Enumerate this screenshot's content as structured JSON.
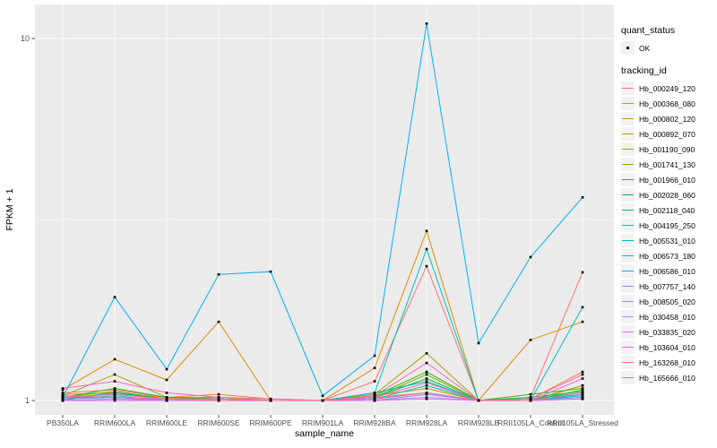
{
  "figure": {
    "panel_background": "#EBEBEB",
    "gridline_color": "#FFFFFF",
    "marker_color": "#000000",
    "axis_text_color": "#4D4D4D"
  },
  "axes": {
    "x_title": "sample_name",
    "y_title": "FPKM + 1",
    "y_tick_labels": [
      "10",
      "1"
    ]
  },
  "legend": {
    "quant_status_title": "quant_status",
    "quant_status_items": [
      {
        "label": "OK",
        "marker": "black-point"
      }
    ],
    "tracking_id_title": "tracking_id"
  },
  "chart_data": {
    "type": "line",
    "title": "",
    "xlabel": "sample_name",
    "ylabel": "FPKM + 1",
    "y_scale": "log10",
    "y_ticks": [
      1,
      10
    ],
    "y_minor_gridline_at": 3.162,
    "ylim_approx": [
      0.93,
      12.5
    ],
    "grid": true,
    "legend_position": "right",
    "point_marker": "small black square (quant_status = OK)",
    "categories": [
      "PB350LA",
      "RRIM600LA",
      "RRIM600LE",
      "RRIM600SE",
      "RRIM600PE",
      "RRIM901LA",
      "RRIM928BA",
      "RRIM928LA",
      "RRIM928LB",
      "RRII105LA_Control",
      "RRII105LA_Stressed"
    ],
    "series": [
      {
        "name": "Hb_000249_120",
        "color": "#F8766D",
        "values": [
          1.05,
          1.07,
          1.02,
          1.02,
          1.0,
          1.0,
          1.13,
          2.35,
          1.0,
          1.02,
          2.26
        ]
      },
      {
        "name": "Hb_000368_080",
        "color": "#EA8331",
        "values": [
          1.04,
          1.05,
          1.02,
          1.04,
          1.01,
          1.0,
          1.02,
          1.05,
          1.0,
          1.01,
          1.2
        ]
      },
      {
        "name": "Hb_000802_120",
        "color": "#D89000",
        "values": [
          1.07,
          1.3,
          1.14,
          1.65,
          1.0,
          1.0,
          1.23,
          2.94,
          1.0,
          1.47,
          1.65
        ]
      },
      {
        "name": "Hb_000892_070",
        "color": "#C09B00",
        "values": [
          1.02,
          1.04,
          1.01,
          1.02,
          1.0,
          1.0,
          1.03,
          1.08,
          1.0,
          1.0,
          1.1
        ]
      },
      {
        "name": "Hb_001190_090",
        "color": "#A3A500",
        "values": [
          1.03,
          1.18,
          1.02,
          1.01,
          1.0,
          1.0,
          1.04,
          1.35,
          1.0,
          1.0,
          1.1
        ]
      },
      {
        "name": "Hb_001741_130",
        "color": "#7CAE00",
        "values": [
          1.02,
          1.06,
          1.01,
          1.01,
          1.0,
          1.0,
          1.02,
          1.18,
          1.0,
          1.0,
          1.07
        ]
      },
      {
        "name": "Hb_001966_010",
        "color": "#39B600",
        "values": [
          1.02,
          1.08,
          1.02,
          1.01,
          1.0,
          1.0,
          1.03,
          1.2,
          1.0,
          1.04,
          1.08
        ]
      },
      {
        "name": "Hb_002028_060",
        "color": "#00BB4E",
        "values": [
          1.01,
          1.05,
          1.01,
          1.0,
          1.0,
          1.0,
          1.02,
          1.15,
          1.0,
          1.02,
          1.06
        ]
      },
      {
        "name": "Hb_002118_040",
        "color": "#00C085",
        "values": [
          1.02,
          1.04,
          1.01,
          1.0,
          1.0,
          1.0,
          1.05,
          1.13,
          1.0,
          1.01,
          1.05
        ]
      },
      {
        "name": "Hb_004195_250",
        "color": "#00C0B2",
        "values": [
          1.01,
          1.03,
          1.0,
          1.0,
          1.0,
          1.0,
          1.01,
          1.1,
          1.0,
          1.0,
          1.04
        ]
      },
      {
        "name": "Hb_005531_010",
        "color": "#00BFC4",
        "values": [
          1.0,
          1.05,
          1.0,
          1.0,
          1.0,
          1.0,
          1.05,
          2.62,
          1.0,
          1.0,
          1.81
        ]
      },
      {
        "name": "Hb_006573_180",
        "color": "#00BCD8",
        "values": [
          1.01,
          1.02,
          1.0,
          1.0,
          1.0,
          1.0,
          1.01,
          1.05,
          1.0,
          1.0,
          1.03
        ]
      },
      {
        "name": "Hb_006586_010",
        "color": "#00B0F6",
        "values": [
          1.02,
          1.93,
          1.22,
          2.23,
          2.27,
          1.03,
          1.33,
          11.0,
          1.44,
          2.49,
          3.64
        ]
      },
      {
        "name": "Hb_007757_140",
        "color": "#7C96FF",
        "values": [
          1.01,
          1.02,
          1.0,
          1.01,
          1.0,
          1.0,
          1.0,
          1.04,
          1.0,
          1.0,
          1.02
        ]
      },
      {
        "name": "Hb_008505_020",
        "color": "#9590FF",
        "values": [
          1.0,
          1.01,
          1.0,
          1.0,
          1.0,
          1.0,
          1.0,
          1.04,
          1.0,
          1.0,
          1.02
        ]
      },
      {
        "name": "Hb_030458_010",
        "color": "#B983FF",
        "values": [
          1.0,
          1.01,
          1.0,
          1.0,
          1.0,
          1.0,
          1.0,
          1.02,
          1.0,
          1.0,
          1.01
        ]
      },
      {
        "name": "Hb_033835_020",
        "color": "#E76BF3",
        "values": [
          1.0,
          1.0,
          1.0,
          1.0,
          1.0,
          1.0,
          1.0,
          1.01,
          1.0,
          1.0,
          1.01
        ]
      },
      {
        "name": "Hb_103604_010",
        "color": "#FA62DB",
        "values": [
          1.02,
          1.04,
          1.01,
          1.01,
          1.0,
          1.0,
          1.02,
          1.12,
          1.0,
          1.0,
          1.15
        ]
      },
      {
        "name": "Hb_163268_010",
        "color": "#FF62BC",
        "values": [
          1.08,
          1.13,
          1.05,
          1.02,
          1.01,
          1.0,
          1.03,
          1.27,
          1.0,
          1.01,
          1.18
        ]
      },
      {
        "name": "Hb_165666_010",
        "color": "#FF6A98",
        "values": [
          1.03,
          1.02,
          1.01,
          1.0,
          1.0,
          1.0,
          1.01,
          1.05,
          1.0,
          1.0,
          1.05
        ]
      }
    ]
  }
}
